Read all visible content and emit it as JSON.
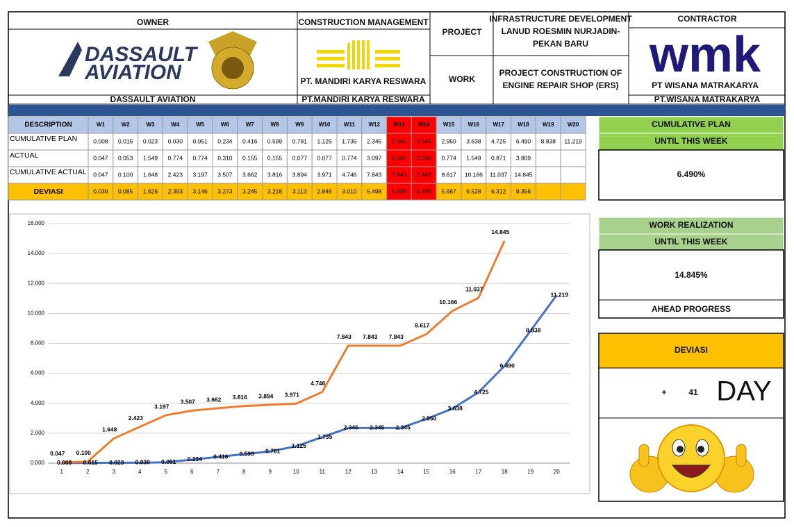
{
  "header": {
    "owner_label": "OWNER",
    "owner_logo_lines": [
      "DASSAULT",
      "AVIATION"
    ],
    "owner_name": "DASSAULT AVIATION",
    "cm_label": "CONSTRUCTION MANAGEMENT",
    "cm_logo_text": "PT. MANDIRI KARYA RESWARA",
    "cm_name": "PT.MANDIRI KARYA RESWARA",
    "project_label": "PROJECT",
    "project_value_lines": [
      "INFRASTRUCTURE DEVELOPMENT",
      "LANUD ROESMIN NURJADIN-",
      "PEKAN BARU"
    ],
    "work_label": "WORK",
    "work_value_lines": [
      "PROJECT CONSTRUCTION OF",
      "ENGINE REPAIR SHOP (ERS)"
    ],
    "contractor_label": "CONTRACTOR",
    "contractor_logo": "wmk",
    "contractor_logo_text": "PT WISANA MATRAKARYA",
    "contractor_name": "PT.WISANA MATRAKARYA"
  },
  "table": {
    "header": [
      "DESCRIPTION",
      "W1",
      "W2",
      "W3",
      "W4",
      "W5",
      "W6",
      "W7",
      "W8",
      "W9",
      "W10",
      "W11",
      "W12",
      "W13",
      "W14",
      "W15",
      "W16",
      "W17",
      "W18",
      "W19",
      "W20"
    ],
    "highlight_columns": [
      13,
      14
    ],
    "highlight_color": "#ff0000",
    "rows": [
      {
        "label": "CUMULATIVE PLAN",
        "cells": [
          "0.008",
          "0.015",
          "0.023",
          "0.030",
          "0.051",
          "0.234",
          "0.416",
          "0.599",
          "0.781",
          "1.125",
          "1.735",
          "2.345",
          "2.345",
          "2.345",
          "2.950",
          "3.638",
          "4.725",
          "6.490",
          "8.838",
          "11.219"
        ]
      },
      {
        "label": "ACTUAL",
        "cells": [
          "0.047",
          "0.053",
          "1.549",
          "0.774",
          "0.774",
          "0.310",
          "0.155",
          "0.155",
          "0.077",
          "0.077",
          "0.774",
          "3.097",
          "0.000",
          "0.000",
          "0.774",
          "1.549",
          "0.871",
          "3.809",
          null,
          null
        ]
      },
      {
        "label": "CUMULATIVE ACTUAL",
        "cells": [
          "0.047",
          "0.100",
          "1.648",
          "2.423",
          "3.197",
          "3.507",
          "3.662",
          "3.816",
          "3.894",
          "3.971",
          "4.746",
          "7.843",
          "7.843",
          "7.843",
          "8.617",
          "10.166",
          "11.037",
          "14.845",
          null,
          null
        ]
      },
      {
        "label": "DEVIASI",
        "cells": [
          "0.039",
          "0.085",
          "1.626",
          "2.393",
          "3.146",
          "3.273",
          "3.245",
          "3.218",
          "3.113",
          "2.846",
          "3.010",
          "5.498",
          "5.498",
          "5.498",
          "5.667",
          "6.528",
          "6.312",
          "8.356",
          null,
          null
        ]
      }
    ]
  },
  "chart_data": {
    "type": "line",
    "x": [
      1,
      2,
      3,
      4,
      5,
      6,
      7,
      8,
      9,
      10,
      11,
      12,
      13,
      14,
      15,
      16,
      17,
      18,
      19,
      20
    ],
    "xlim": [
      0.5,
      20.5
    ],
    "xticks": [
      1,
      2,
      3,
      4,
      5,
      6,
      7,
      8,
      9,
      10,
      11,
      12,
      13,
      14,
      15,
      16,
      17,
      18,
      19,
      20
    ],
    "ylim": [
      0,
      16
    ],
    "yticks": [
      {
        "value": 0,
        "label": "0.000"
      },
      {
        "value": 2,
        "label": "2.000"
      },
      {
        "value": 4,
        "label": "4.000"
      },
      {
        "value": 6,
        "label": "6.000"
      },
      {
        "value": 8,
        "label": "8.000"
      },
      {
        "value": 10,
        "label": "10.000"
      },
      {
        "value": 12,
        "label": "12.000"
      },
      {
        "value": 14,
        "label": "14.000"
      },
      {
        "value": 16,
        "label": "16.000"
      }
    ],
    "grid": true,
    "series": [
      {
        "color": "#4472c4",
        "values": [
          0.008,
          0.015,
          0.023,
          0.03,
          0.051,
          0.234,
          0.416,
          0.599,
          0.781,
          1.125,
          1.735,
          2.345,
          2.345,
          2.345,
          2.95,
          3.638,
          4.725,
          6.49,
          8.838,
          11.219
        ],
        "value_labels": [
          "0.008",
          "0.015",
          "0.023",
          "0.030",
          "0.051",
          "0.234",
          "0.416",
          "0.599",
          "0.781",
          "1.125",
          "1.735",
          "2.345",
          "2.345",
          "2.345",
          "2.950",
          "3.638",
          "4.725",
          "6.490",
          "8.838",
          "11.219"
        ]
      },
      {
        "color": "#ed7d31",
        "values": [
          0.047,
          0.1,
          1.648,
          2.423,
          3.197,
          3.507,
          3.662,
          3.816,
          3.894,
          3.971,
          4.746,
          7.843,
          7.843,
          7.843,
          8.617,
          10.166,
          11.037,
          14.845,
          null,
          null
        ],
        "value_labels": [
          "0.047",
          "0.100",
          "1.648",
          "2.423",
          "3.197",
          "3.507",
          "3.662",
          "3.816",
          "3.894",
          "3.971",
          "4.746",
          "7.843",
          "7.843",
          "7.843",
          "8.617",
          "10.166",
          "11.037",
          "14.845",
          null,
          null
        ]
      }
    ]
  },
  "panels": {
    "plan": {
      "title": "CUMULATIVE PLAN",
      "subtitle": "UNTIL THIS WEEK",
      "value": "6.490%"
    },
    "realization": {
      "title": "WORK REALIZATION",
      "subtitle": "UNTIL THIS WEEK",
      "value": "14.845%",
      "status": "AHEAD PROGRESS"
    },
    "deviasi": {
      "title": "DEVIASI",
      "sign": "+",
      "days": "41",
      "unit": "DAY"
    }
  }
}
